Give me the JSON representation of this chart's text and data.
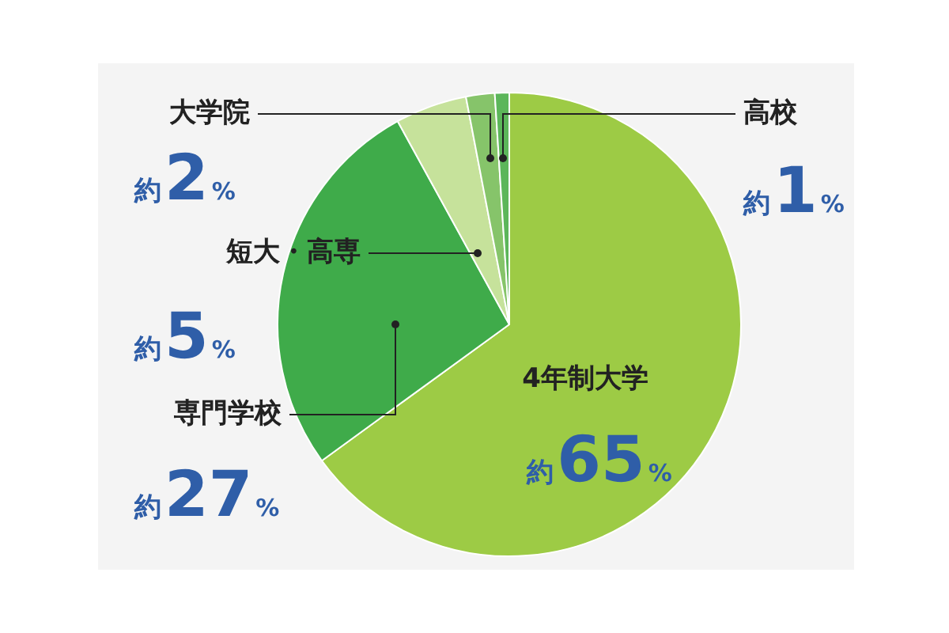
{
  "chart_data": {
    "type": "pie",
    "categories": [
      "4年制大学",
      "専門学校",
      "短大・高専",
      "大学院",
      "高校"
    ],
    "values": [
      65,
      27,
      5,
      2,
      1
    ],
    "colors": [
      "#9dcb45",
      "#3fab4a",
      "#c6e29b",
      "#86c46a",
      "#5cb65a"
    ],
    "value_labels": [
      "約65%",
      "約27%",
      "約5%",
      "約2%",
      "約1%"
    ]
  }
}
